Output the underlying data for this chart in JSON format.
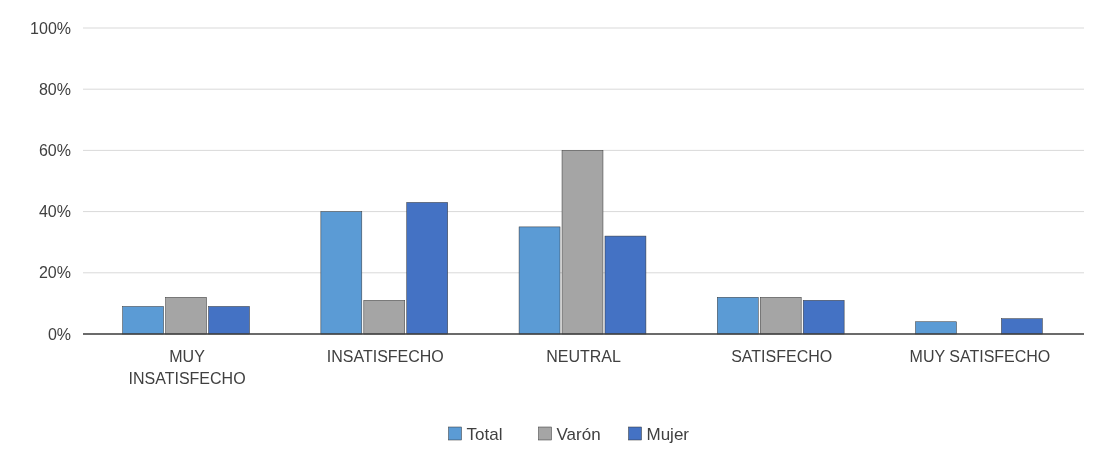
{
  "chart_data": {
    "type": "bar",
    "categories": [
      "MUY INSATISFECHO",
      "INSATISFECHO",
      "NEUTRAL",
      "SATISFECHO",
      "MUY SATISFECHO"
    ],
    "series": [
      {
        "name": "Total",
        "color": "#5b9bd5",
        "values": [
          9,
          40,
          35,
          12,
          4
        ]
      },
      {
        "name": "Varón",
        "color": "#a5a5a5",
        "values": [
          12,
          11,
          60,
          12,
          0
        ]
      },
      {
        "name": "Mujer",
        "color": "#4472c4",
        "values": [
          9,
          43,
          32,
          11,
          5
        ]
      }
    ],
    "ylim": [
      0,
      100
    ],
    "yticks": [
      {
        "value": 0,
        "label": "0%"
      },
      {
        "value": 20,
        "label": "20%"
      },
      {
        "value": 40,
        "label": "40%"
      },
      {
        "value": 60,
        "label": "60%"
      },
      {
        "value": 80,
        "label": "80%"
      },
      {
        "value": 100,
        "label": "100%"
      }
    ],
    "grid": "y",
    "legend": "bottom"
  }
}
